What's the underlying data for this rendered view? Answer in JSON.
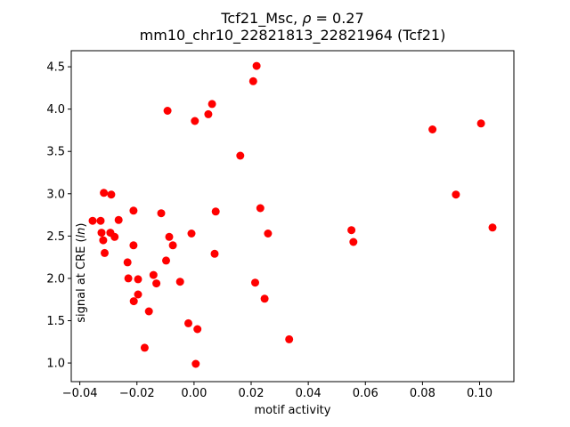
{
  "chart_data": {
    "type": "scatter",
    "title_prefix": "Tcf21_Msc, ",
    "title_rho": "ρ",
    "title_suffix": " = 0.27",
    "subtitle": "mm10_chr10_22821813_22821964 (Tcf21)",
    "xlabel": "motif activity",
    "ylabel_prefix": "signal at CRE (",
    "ylabel_italic": "ln",
    "ylabel_suffix": ")",
    "marker_color": "#ff0000",
    "axis_color": "#000000",
    "background_color": "#ffffff",
    "legend": "none",
    "grid": false,
    "xlim": [
      -0.043,
      0.112
    ],
    "ylim": [
      0.78,
      4.69
    ],
    "xticks": [
      -0.04,
      -0.02,
      0.0,
      0.02,
      0.04,
      0.06,
      0.08,
      0.1
    ],
    "xtick_labels": [
      "−0.04",
      "−0.02",
      "0.00",
      "0.02",
      "0.04",
      "0.06",
      "0.08",
      "0.10"
    ],
    "yticks": [
      1.0,
      1.5,
      2.0,
      2.5,
      3.0,
      3.5,
      4.0,
      4.5
    ],
    "ytick_labels": [
      "1.0",
      "1.5",
      "2.0",
      "2.5",
      "3.0",
      "3.5",
      "4.0",
      "4.5"
    ],
    "points": [
      [
        -0.0316,
        3.01
      ],
      [
        -0.029,
        2.99
      ],
      [
        -0.0355,
        2.68
      ],
      [
        -0.0327,
        2.68
      ],
      [
        -0.0264,
        2.69
      ],
      [
        -0.0212,
        2.8
      ],
      [
        -0.0115,
        2.77
      ],
      [
        0.0076,
        2.79
      ],
      [
        0.0232,
        2.83
      ],
      [
        -0.0324,
        2.54
      ],
      [
        -0.0293,
        2.54
      ],
      [
        -0.0278,
        2.49
      ],
      [
        -0.0318,
        2.45
      ],
      [
        -0.0313,
        2.3
      ],
      [
        -0.0212,
        2.39
      ],
      [
        -0.0087,
        2.49
      ],
      [
        -0.0074,
        2.39
      ],
      [
        -0.0009,
        2.53
      ],
      [
        0.0259,
        2.53
      ],
      [
        0.0072,
        2.29
      ],
      [
        -0.0233,
        2.19
      ],
      [
        -0.0098,
        2.21
      ],
      [
        -0.023,
        2.0
      ],
      [
        -0.0196,
        1.99
      ],
      [
        -0.0142,
        2.04
      ],
      [
        -0.0132,
        1.94
      ],
      [
        -0.0049,
        1.96
      ],
      [
        -0.0196,
        1.81
      ],
      [
        -0.0211,
        1.73
      ],
      [
        -0.0158,
        1.61
      ],
      [
        -0.002,
        1.47
      ],
      [
        0.0012,
        1.4
      ],
      [
        -0.0173,
        1.18
      ],
      [
        0.0006,
        0.99
      ],
      [
        0.0214,
        1.95
      ],
      [
        0.0247,
        1.76
      ],
      [
        0.0333,
        1.28
      ],
      [
        0.0219,
        4.51
      ],
      [
        0.0207,
        4.33
      ],
      [
        0.0063,
        4.06
      ],
      [
        0.005,
        3.94
      ],
      [
        -0.0093,
        3.98
      ],
      [
        0.0003,
        3.86
      ],
      [
        0.0162,
        3.45
      ],
      [
        0.0835,
        3.76
      ],
      [
        0.1005,
        3.83
      ],
      [
        0.0917,
        2.99
      ],
      [
        0.1045,
        2.6
      ],
      [
        0.0551,
        2.57
      ],
      [
        0.0558,
        2.43
      ]
    ]
  }
}
